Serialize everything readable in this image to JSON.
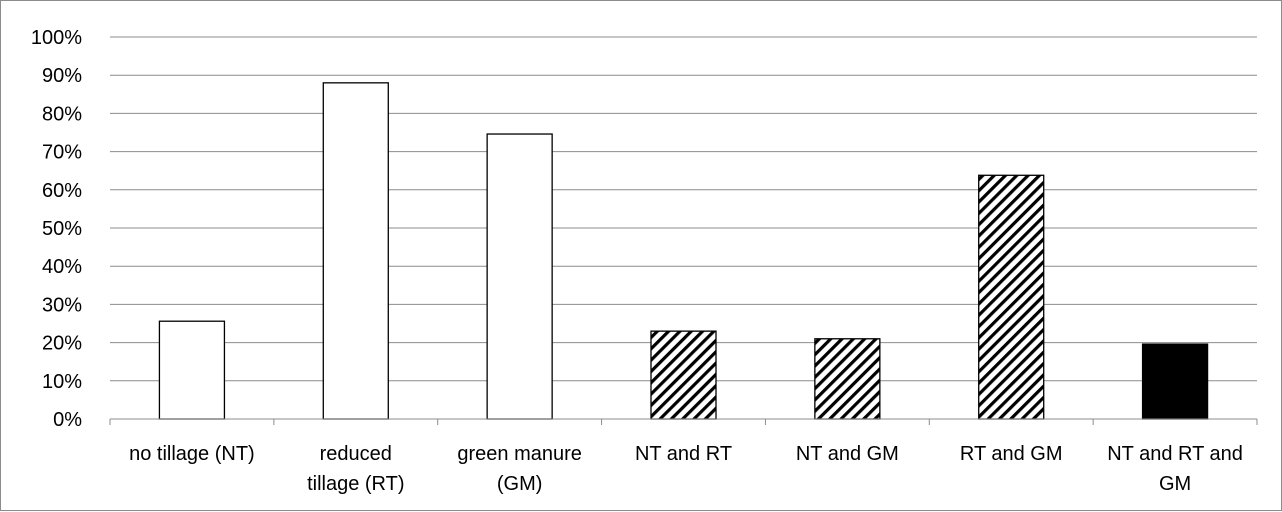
{
  "chart_data": {
    "type": "bar",
    "title": "",
    "xlabel": "",
    "ylabel": "",
    "ylim": [
      0,
      100
    ],
    "y_ticks": [
      "0%",
      "10%",
      "20%",
      "30%",
      "40%",
      "50%",
      "60%",
      "70%",
      "80%",
      "90%",
      "100%"
    ],
    "grid": true,
    "legend": "none",
    "categories": [
      [
        "no tillage (NT)"
      ],
      [
        "reduced",
        "tillage (RT)"
      ],
      [
        "green manure",
        "(GM)"
      ],
      [
        "NT and RT"
      ],
      [
        "NT and GM"
      ],
      [
        "RT and GM"
      ],
      [
        "NT and RT and",
        "GM"
      ]
    ],
    "values": [
      25.6,
      88.0,
      74.6,
      23.0,
      21.0,
      63.8,
      19.6
    ],
    "fills": [
      "white",
      "white",
      "white",
      "hatch",
      "hatch",
      "hatch",
      "solid"
    ],
    "colors": {
      "bar_edge": "#000000",
      "solid": "#000000",
      "grid": "#8c8c8c"
    }
  }
}
